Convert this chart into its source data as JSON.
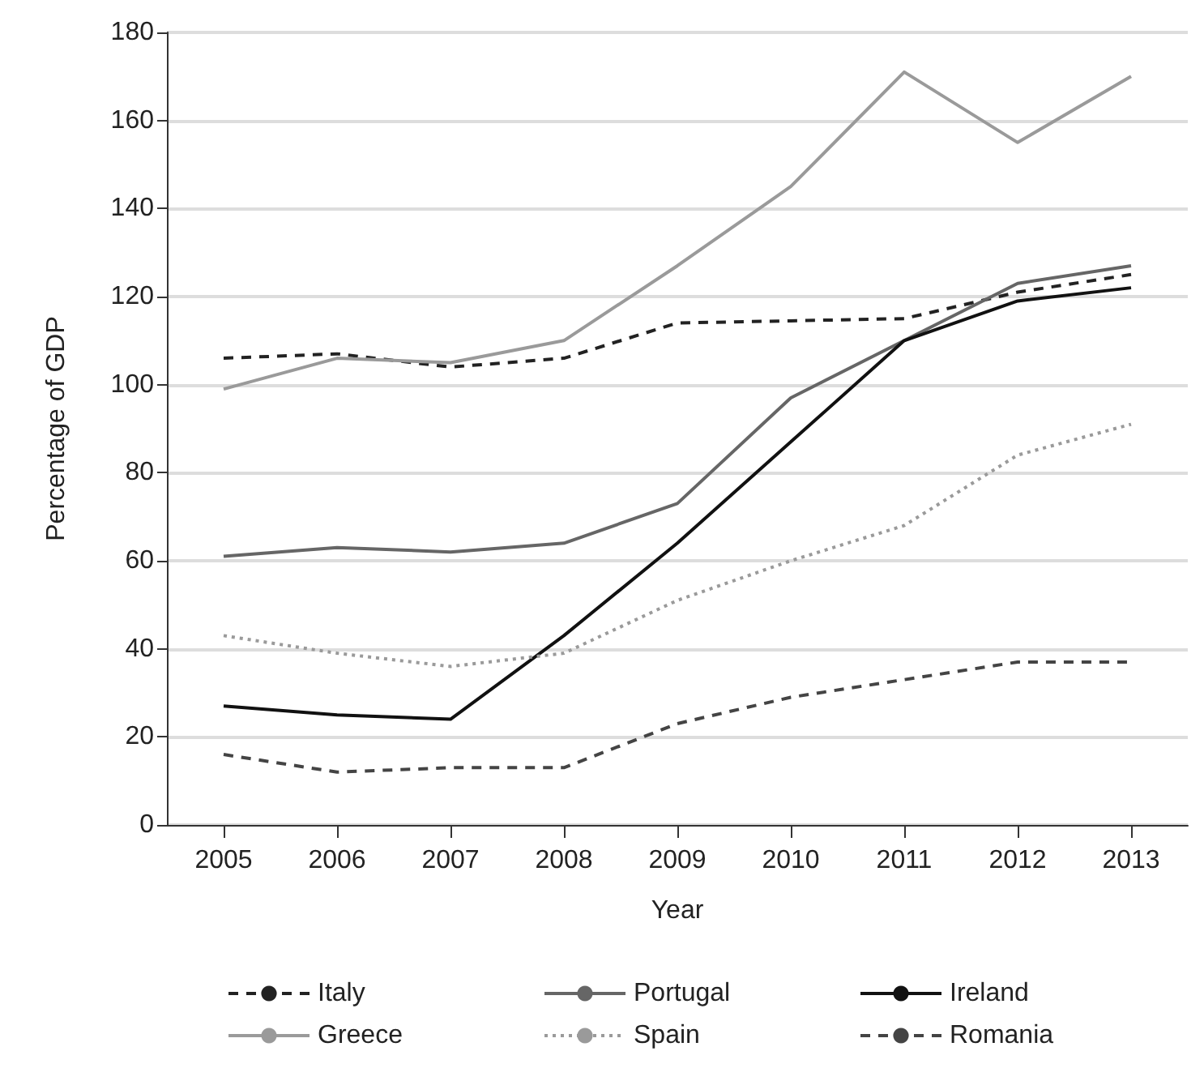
{
  "chart_data": {
    "type": "line",
    "xlabel": "Year",
    "ylabel": "Percentage of GDP",
    "categories": [
      "2005",
      "2006",
      "2007",
      "2008",
      "2009",
      "2010",
      "2011",
      "2012",
      "2013"
    ],
    "series": [
      {
        "name": "Italy",
        "color": "#222222",
        "line_style": "dashed",
        "values": [
          106,
          107,
          104,
          106,
          114,
          114.5,
          115,
          121,
          125
        ]
      },
      {
        "name": "Portugal",
        "color": "#666666",
        "line_style": "solid",
        "values": [
          61,
          63,
          62,
          64,
          73,
          97,
          110,
          123,
          127
        ]
      },
      {
        "name": "Ireland",
        "color": "#111111",
        "line_style": "solid",
        "values": [
          27,
          25,
          24,
          43,
          64,
          87,
          110,
          119,
          122
        ]
      },
      {
        "name": "Greece",
        "color": "#9a9a9a",
        "line_style": "solid",
        "values": [
          99,
          106,
          105,
          110,
          127,
          145,
          171,
          155,
          170
        ]
      },
      {
        "name": "Spain",
        "color": "#9a9a9a",
        "line_style": "dotted",
        "values": [
          43,
          39,
          36,
          39,
          51,
          60,
          68,
          84,
          91
        ]
      },
      {
        "name": "Romania",
        "color": "#444444",
        "line_style": "dashed",
        "values": [
          16,
          12,
          13,
          13,
          23,
          29,
          33,
          37,
          37
        ]
      }
    ],
    "ylim": [
      0,
      180
    ],
    "yticks": [
      0,
      20,
      40,
      60,
      80,
      100,
      120,
      140,
      160,
      180
    ],
    "grid": "y",
    "legend": "bottom",
    "marker": "none"
  }
}
